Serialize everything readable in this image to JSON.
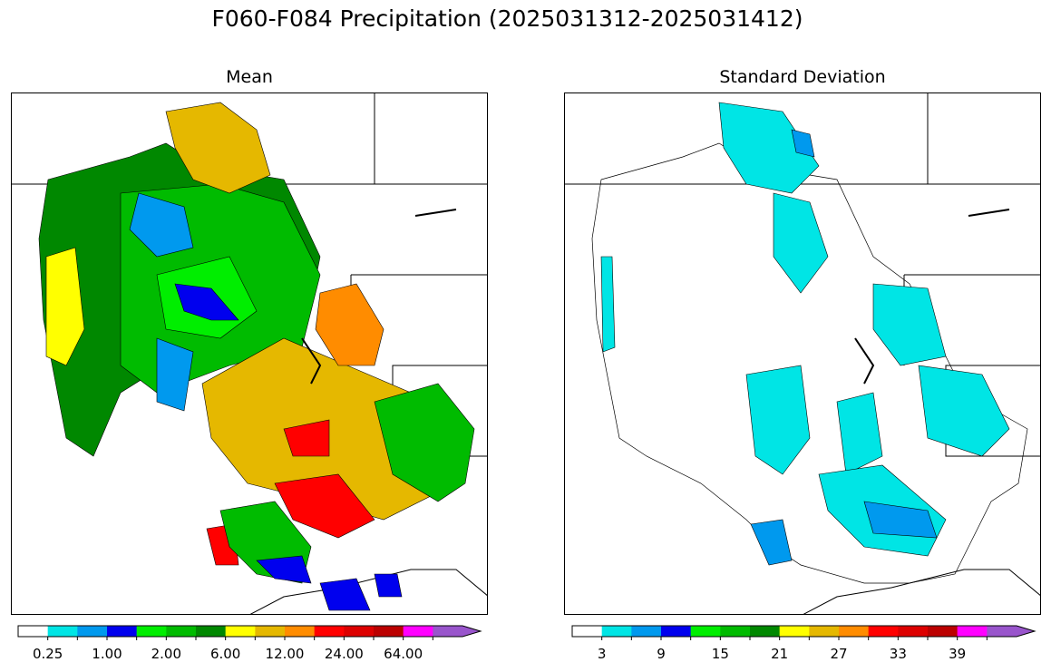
{
  "title": "F060-F084 Precipitation (2025031312-2025031412)",
  "panels": [
    {
      "title": "Mean",
      "colorbar": {
        "colors": [
          "#ffffff",
          "#00e5e5",
          "#0099ee",
          "#0000ee",
          "#00ee00",
          "#00bb00",
          "#008800",
          "#ffff00",
          "#e5b800",
          "#ff8c00",
          "#ff0000",
          "#dd0000",
          "#bb0000",
          "#ff00ff",
          "#9955cc"
        ],
        "tick_labels": [
          "0.25",
          "1.00",
          "2.00",
          "6.00",
          "12.00",
          "24.00",
          "64.00"
        ],
        "extend": "max"
      }
    },
    {
      "title": "Standard Deviation",
      "colorbar": {
        "colors": [
          "#ffffff",
          "#00e5e5",
          "#0099ee",
          "#0000ee",
          "#00ee00",
          "#00bb00",
          "#008800",
          "#ffff00",
          "#e5b800",
          "#ff8c00",
          "#ff0000",
          "#dd0000",
          "#bb0000",
          "#ff00ff",
          "#9955cc"
        ],
        "tick_labels": [
          "3",
          "9",
          "15",
          "21",
          "27",
          "33",
          "39"
        ],
        "extend": "max"
      }
    }
  ],
  "map_colors": {
    "mean_regions": [
      {
        "name": "northwest-coast",
        "color": "#008800"
      },
      {
        "name": "interior-northwest",
        "color": "#00bb00"
      },
      {
        "name": "idaho-bright",
        "color": "#00ee00"
      },
      {
        "name": "central-idaho-low",
        "color": "#0000ee"
      },
      {
        "name": "nevada-low",
        "color": "#0099ee"
      },
      {
        "name": "oregon-coast-dry",
        "color": "#ffff00"
      },
      {
        "name": "canada-north",
        "color": "#e5b800"
      },
      {
        "name": "great-basin",
        "color": "#e5b800"
      },
      {
        "name": "utah-high",
        "color": "#ff0000"
      },
      {
        "name": "colorado-orange",
        "color": "#ff8c00"
      },
      {
        "name": "arizona-high",
        "color": "#ff0000"
      },
      {
        "name": "socal-high",
        "color": "#ff0000"
      },
      {
        "name": "mexico-low",
        "color": "#0000ee"
      }
    ],
    "std_regions": [
      {
        "name": "canada-north",
        "color": "#00e5e5"
      },
      {
        "name": "canada-north-peak",
        "color": "#0099ee"
      },
      {
        "name": "great-basin",
        "color": "#00e5e5"
      },
      {
        "name": "rockies",
        "color": "#00e5e5"
      },
      {
        "name": "arizona",
        "color": "#0099ee"
      },
      {
        "name": "socal",
        "color": "#0099ee"
      },
      {
        "name": "coast-strip",
        "color": "#00e5e5"
      }
    ]
  }
}
